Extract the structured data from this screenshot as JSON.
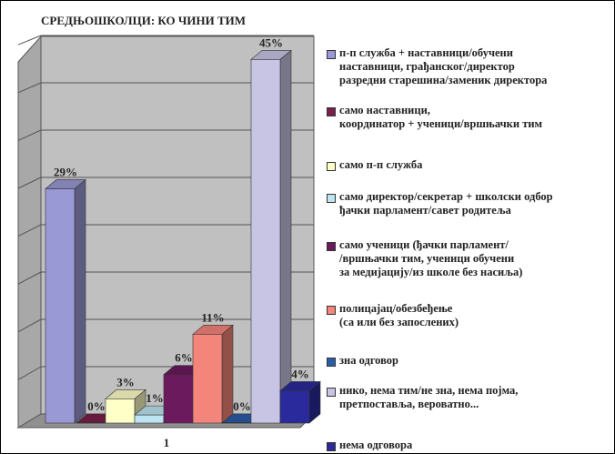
{
  "chart_data": {
    "type": "bar3d",
    "title": "СРЕДЊОШКОЛЦИ: КО ЧИНИ ТИМ",
    "categories": [
      "1"
    ],
    "ylim": [
      0,
      50
    ],
    "series": [
      {
        "name": "п-п служба + наставници/обучени\nнаставници, грађанског/директор\nразредни старешина/заменик директора",
        "color": "#9999d6",
        "values": [
          29
        ],
        "value_labels": [
          "29%"
        ]
      },
      {
        "name": "само наставници,\nкоординатор + ученици/вршњачки тим",
        "color": "#7a1f4a",
        "values": [
          0
        ],
        "value_labels": [
          "0%"
        ]
      },
      {
        "name": "само п-п служба",
        "color": "#ffffc8",
        "values": [
          3
        ],
        "value_labels": [
          "3%"
        ]
      },
      {
        "name": "само директор/секретар + школски одбор\nђачки парламент/савет родитеља",
        "color": "#bde4f0",
        "values": [
          1
        ],
        "value_labels": [
          "1%"
        ]
      },
      {
        "name": "само ученици (ђачки парламент/\n/вршњачки тим, ученици обучени\nза медијацију/из школе без насиља)",
        "color": "#6b1a5e",
        "values": [
          6
        ],
        "value_labels": [
          "6%"
        ]
      },
      {
        "name": "полицајац/обезбеђење\n(са или без запослених)",
        "color": "#f4857a",
        "values": [
          11
        ],
        "value_labels": [
          "11%"
        ]
      },
      {
        "name": "зна одговор",
        "color": "#2a5ca8",
        "values": [
          0
        ],
        "value_labels": [
          "0%"
        ]
      },
      {
        "name": "нико, нема тим/не зна, нема појма,\nпретпоставља, вероватно...",
        "color": "#c8c4e4",
        "values": [
          45
        ],
        "value_labels": [
          "45%"
        ]
      },
      {
        "name": "нема одговора",
        "color": "#2a2a9c",
        "values": [
          4
        ],
        "value_labels": [
          "4%"
        ]
      }
    ]
  }
}
